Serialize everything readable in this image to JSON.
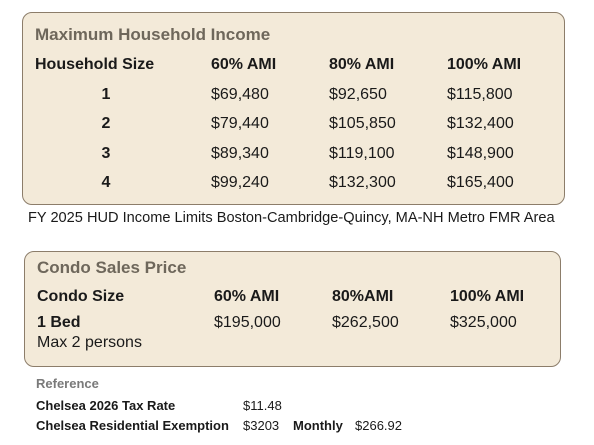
{
  "income_table": {
    "title": "Maximum Household Income",
    "columns": [
      "Household Size",
      "60% AMI",
      "80% AMI",
      "100% AMI"
    ],
    "rows": [
      [
        "1",
        "$69,480",
        "$92,650",
        "$115,800"
      ],
      [
        "2",
        "$79,440",
        "$105,850",
        "$132,400"
      ],
      [
        "3",
        "$89,340",
        "$119,100",
        "$148,900"
      ],
      [
        "4",
        "$99,240",
        "$132,300",
        "$165,400"
      ]
    ]
  },
  "caption": "FY 2025 HUD Income Limits Boston-Cambridge-Quincy, MA-NH Metro FMR Area",
  "condo_table": {
    "title": "Condo Sales Price",
    "columns": [
      "Condo Size",
      "60% AMI",
      "80%AMI",
      "100% AMI"
    ],
    "rows": [
      [
        "1 Bed",
        "$195,000",
        "$262,500",
        "$325,000"
      ]
    ],
    "note": "Max 2 persons"
  },
  "reference": {
    "title": "Reference",
    "rows": [
      [
        "Chelsea 2026 Tax Rate",
        "$11.48"
      ],
      [
        "Chelsea Residential Exemption",
        "$3203",
        "Monthly",
        "$266.92"
      ]
    ]
  }
}
